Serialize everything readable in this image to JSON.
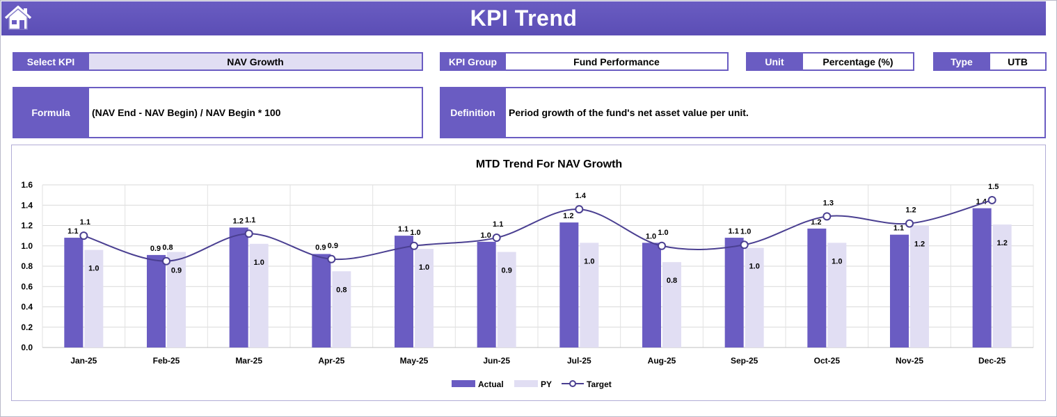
{
  "header": {
    "title": "KPI Trend"
  },
  "icons": {
    "home": "home-icon"
  },
  "info": {
    "select_kpi_label": "Select KPI",
    "select_kpi_value": "NAV Growth",
    "kpi_group_label": "KPI Group",
    "kpi_group_value": "Fund Performance",
    "unit_label": "Unit",
    "unit_value": "Percentage (%)",
    "type_label": "Type",
    "type_value": "UTB",
    "formula_label": "Formula",
    "formula_value": "(NAV End - NAV Begin) / NAV Begin * 100",
    "definition_label": "Definition",
    "definition_value": "Period growth of the fund's net asset value per unit."
  },
  "colors": {
    "accent": "#6a5cc2",
    "actual": "#6a5cc2",
    "py": "#e1def3",
    "target": "#4a3f91"
  },
  "chart_data": {
    "type": "bar",
    "title": "MTD Trend For NAV Growth",
    "categories": [
      "Jan-25",
      "Feb-25",
      "Mar-25",
      "Apr-25",
      "May-25",
      "Jun-25",
      "Jul-25",
      "Aug-25",
      "Sep-25",
      "Oct-25",
      "Nov-25",
      "Dec-25"
    ],
    "series": [
      {
        "name": "Actual",
        "kind": "bar",
        "values": [
          1.08,
          0.91,
          1.18,
          0.92,
          1.1,
          1.04,
          1.23,
          1.03,
          1.08,
          1.17,
          1.11,
          1.37
        ],
        "labels": [
          "1.1",
          "0.9",
          "1.2",
          "0.9",
          "1.1",
          "1.0",
          "1.2",
          "1.0",
          "1.1",
          "1.2",
          "1.1",
          "1.4"
        ]
      },
      {
        "name": "PY",
        "kind": "bar",
        "values": [
          0.96,
          0.94,
          1.02,
          0.75,
          0.97,
          0.94,
          1.03,
          0.84,
          0.98,
          1.03,
          1.2,
          1.21
        ],
        "labels": [
          "1.0",
          "0.9",
          "1.0",
          "0.8",
          "1.0",
          "0.9",
          "1.0",
          "0.8",
          "1.0",
          "1.0",
          "1.2",
          "1.2"
        ]
      },
      {
        "name": "Target",
        "kind": "line",
        "values": [
          1.1,
          0.85,
          1.12,
          0.87,
          1.0,
          1.08,
          1.36,
          1.0,
          1.01,
          1.29,
          1.22,
          1.45
        ],
        "labels": [
          "1.1",
          "0.8",
          "1.1",
          "0.9",
          "1.0",
          "1.1",
          "1.4",
          "1.0",
          "1.0",
          "1.3",
          "1.2",
          "1.5"
        ]
      }
    ],
    "yticks": [
      "0.0",
      "0.2",
      "0.4",
      "0.6",
      "0.8",
      "1.0",
      "1.2",
      "1.4",
      "1.6"
    ],
    "ylim": [
      0,
      1.6
    ],
    "grid": true,
    "legend_position": "bottom"
  }
}
